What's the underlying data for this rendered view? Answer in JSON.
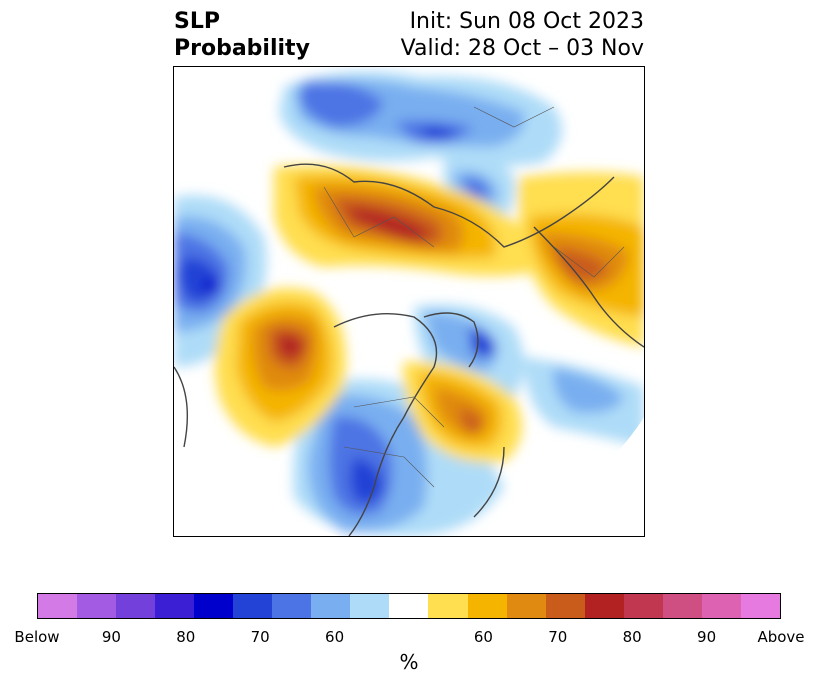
{
  "header": {
    "left_line1": "SLP",
    "left_line2": "Probability",
    "right_line1": "Init: Sun 08 Oct 2023",
    "right_line2": "Valid: 28 Oct – 03 Nov"
  },
  "colorbar": {
    "colors": [
      "#d37ae6",
      "#a35be4",
      "#7440dc",
      "#3b1fd4",
      "#0000cc",
      "#2342d6",
      "#4d74e4",
      "#79aff0",
      "#aedcf8",
      "#ffffff",
      "#ffde4f",
      "#f4b400",
      "#e08a11",
      "#c95c1a",
      "#b22222",
      "#c0374f",
      "#cf4f83",
      "#dd62b1",
      "#e77ae0"
    ],
    "ticks": [
      "Below",
      "90",
      "80",
      "70",
      "60",
      "60",
      "70",
      "80",
      "90",
      "Above"
    ],
    "unit": "%"
  },
  "map": {
    "projection": "polar-stereographic-north",
    "features": [
      "coastlines",
      "country-borders",
      "state-province-borders"
    ]
  }
}
